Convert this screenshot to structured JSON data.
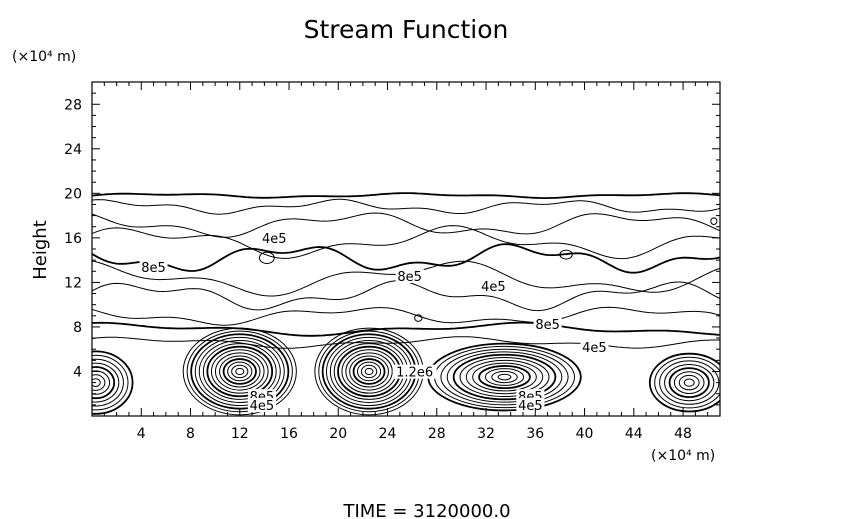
{
  "chart_data": {
    "type": "contour",
    "title": "Stream Function",
    "ylabel": "Height",
    "y_unit_label": "(×10⁴ m)",
    "x_unit_label": "(×10⁴ m)",
    "xlim": [
      0,
      51
    ],
    "ylim": [
      0,
      30
    ],
    "xticks": [
      4,
      8,
      12,
      16,
      20,
      24,
      28,
      32,
      36,
      40,
      44,
      48
    ],
    "yticks": [
      4,
      8,
      12,
      16,
      20,
      24,
      28
    ],
    "xtick_labels": [
      "4",
      "8",
      "12",
      "16",
      "20",
      "24",
      "28",
      "32",
      "36",
      "40",
      "44",
      "48"
    ],
    "ytick_labels": [
      "4",
      "8",
      "12",
      "16",
      "20",
      "24",
      "28"
    ],
    "grid": false,
    "contour_labels": [
      {
        "text": "4e5",
        "x": 14.8,
        "y": 15.8
      },
      {
        "text": "8e5",
        "x": 5.0,
        "y": 13.2
      },
      {
        "text": "8e5",
        "x": 25.8,
        "y": 12.4
      },
      {
        "text": "4e5",
        "x": 32.6,
        "y": 11.5
      },
      {
        "text": "8e5",
        "x": 37.0,
        "y": 8.1
      },
      {
        "text": "4e5",
        "x": 40.8,
        "y": 6.0
      },
      {
        "text": "1.2e6",
        "x": 26.2,
        "y": 3.8
      },
      {
        "text": "8e5",
        "x": 35.6,
        "y": 1.6
      },
      {
        "text": "4e5",
        "x": 35.6,
        "y": 0.8
      },
      {
        "text": "8e5",
        "x": 13.8,
        "y": 1.6
      },
      {
        "text": "4e5",
        "x": 13.8,
        "y": 0.8
      }
    ],
    "vortex_centers": [
      {
        "x": 12.0,
        "y": 4.0
      },
      {
        "x": 22.5,
        "y": 4.0
      },
      {
        "x": 33.5,
        "y": 3.5
      },
      {
        "x": 0.5,
        "y": 3.0
      },
      {
        "x": 48.5,
        "y": 3.0
      }
    ]
  },
  "footer": {
    "time_label": "TIME  =  3120000.0"
  }
}
